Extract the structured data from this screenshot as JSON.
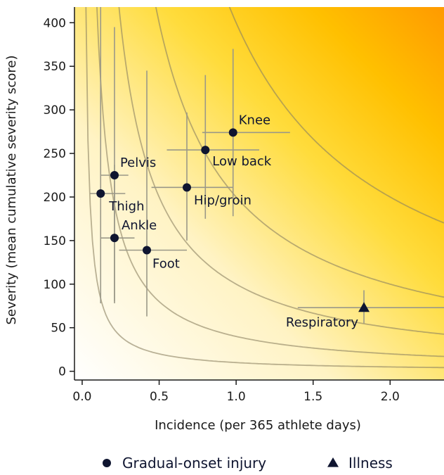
{
  "chart_data": {
    "type": "scatter",
    "xlabel": "Incidence (per 365 athlete days)",
    "ylabel": "Severity (mean cumulative severity score)",
    "xlim": [
      -0.05,
      2.35
    ],
    "ylim": [
      -10,
      418
    ],
    "xticks": [
      0.0,
      0.5,
      1.0,
      1.5,
      2.0
    ],
    "xtick_labels": [
      "0.0",
      "0.5",
      "1.0",
      "1.5",
      "2.0"
    ],
    "yticks": [
      0,
      50,
      100,
      150,
      200,
      250,
      300,
      350,
      400
    ],
    "ytick_labels": [
      "0",
      "50",
      "100",
      "150",
      "200",
      "250",
      "300",
      "350",
      "400"
    ],
    "background": "yellow-orange gradient increasing toward upper right",
    "isoburden_curves": [
      10,
      40,
      100,
      200,
      400
    ],
    "series": [
      {
        "name": "Gradual-onset injury",
        "marker": "circle",
        "color": "#0f1530",
        "points": [
          {
            "label": "Knee",
            "x": 0.98,
            "y": 274,
            "x_low": 0.78,
            "x_high": 1.35,
            "y_low": 178,
            "y_high": 370
          },
          {
            "label": "Low back",
            "x": 0.8,
            "y": 254,
            "x_low": 0.55,
            "x_high": 1.15,
            "y_low": 175,
            "y_high": 340
          },
          {
            "label": "Hip/groin",
            "x": 0.68,
            "y": 211,
            "x_low": 0.45,
            "x_high": 0.98,
            "y_low": 150,
            "y_high": 297
          },
          {
            "label": "Pelvis",
            "x": 0.21,
            "y": 225,
            "x_low": 0.12,
            "x_high": 0.3,
            "y_low": 80,
            "y_high": 395
          },
          {
            "label": "Thigh",
            "x": 0.12,
            "y": 204,
            "x_low": 0.05,
            "x_high": 0.28,
            "y_low": 78,
            "y_high": 418
          },
          {
            "label": "Ankle",
            "x": 0.21,
            "y": 153,
            "x_low": 0.12,
            "x_high": 0.34,
            "y_low": 78,
            "y_high": 237
          },
          {
            "label": "Foot",
            "x": 0.42,
            "y": 139,
            "x_low": 0.24,
            "x_high": 0.68,
            "y_low": 63,
            "y_high": 345
          }
        ]
      },
      {
        "name": "Illness",
        "marker": "triangle",
        "color": "#0f1530",
        "points": [
          {
            "label": "Respiratory",
            "x": 1.83,
            "y": 73,
            "x_low": 1.4,
            "x_high": 2.35,
            "y_low": 55,
            "y_high": 93
          }
        ]
      }
    ],
    "legend": {
      "placement": "bottom",
      "entries": [
        {
          "symbol": "circle",
          "label": "Gradual-onset injury"
        },
        {
          "symbol": "triangle",
          "label": "Illness"
        }
      ]
    }
  }
}
